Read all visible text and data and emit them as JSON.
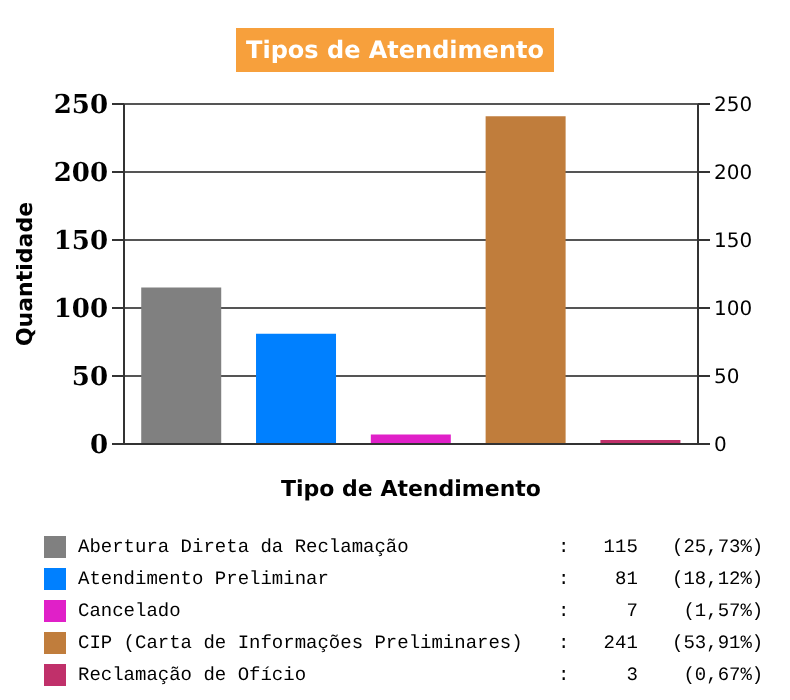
{
  "chart_data": {
    "type": "bar",
    "title": "Tipos de Atendimento",
    "xlabel": "Tipo de Atendimento",
    "ylabel": "Quantidade",
    "categories": [
      null,
      null,
      null,
      null,
      null
    ],
    "stacked": true,
    "series": [
      {
        "name": "Abertura Direta da Reclamação",
        "color": "#808080",
        "values": [
          115,
          null,
          null,
          null,
          null
        ]
      },
      {
        "name": "Atendimento Preliminar",
        "color": "#0080ff",
        "values": [
          null,
          81,
          null,
          null,
          null
        ]
      },
      {
        "name": "Cancelado",
        "color": "#e020c8",
        "values": [
          null,
          null,
          7,
          null,
          null
        ]
      },
      {
        "name": "CIP (Carta de Informações Preliminares)",
        "color": "#c07d3c",
        "values": [
          null,
          null,
          null,
          241,
          null
        ]
      },
      {
        "name": "Reclamação de Ofício",
        "color": "#c0306a",
        "values": [
          null,
          null,
          null,
          null,
          3
        ]
      }
    ],
    "annotations": [
      ":   115   (25,73%)",
      ":    81   (18,12%)",
      ":     7    (1,57%)",
      ":   241   (53,91%)",
      ":     3    (0,67%)"
    ],
    "ylim": [
      0,
      250
    ],
    "yticks": [
      0,
      50,
      100,
      150,
      200,
      250
    ],
    "y2lim": [
      0,
      250
    ],
    "y2ticks": [
      0,
      50,
      100,
      150,
      200,
      250
    ],
    "grid": "y",
    "legend": "bottom"
  }
}
